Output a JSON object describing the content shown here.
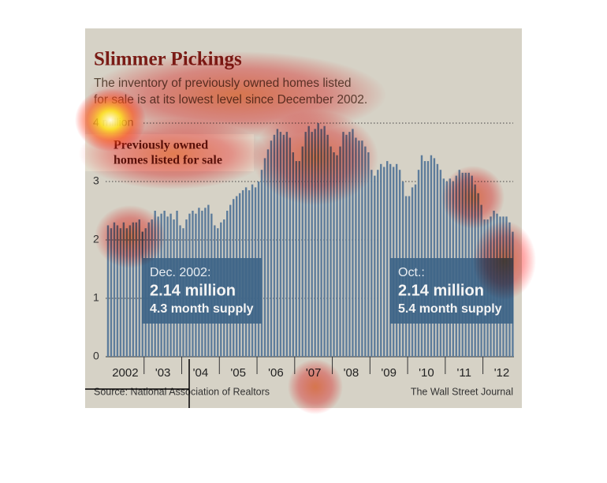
{
  "chart_data": {
    "type": "bar",
    "title": "Slimmer Pickings",
    "subtitle": [
      "The inventory of previously owned homes listed",
      "for sale is at its lowest level since December 2002."
    ],
    "categories": [
      null,
      null,
      null,
      null,
      null,
      "2002",
      null,
      null,
      null,
      null,
      null,
      null,
      null,
      null,
      null,
      null,
      null,
      "'03",
      null,
      null,
      null,
      null,
      null,
      null,
      null,
      null,
      null,
      null,
      null,
      "'04",
      null,
      null,
      null,
      null,
      null,
      null,
      null,
      null,
      null,
      null,
      null,
      "'05",
      null,
      null,
      null,
      null,
      null,
      null,
      null,
      null,
      null,
      null,
      null,
      "'06",
      null,
      null,
      null,
      null,
      null,
      null,
      null,
      null,
      null,
      null,
      null,
      "'07",
      null,
      null,
      null,
      null,
      null,
      null,
      null,
      null,
      null,
      null,
      null,
      "'08",
      null,
      null,
      null,
      null,
      null,
      null,
      null,
      null,
      null,
      null,
      null,
      "'09",
      null,
      null,
      null,
      null,
      null,
      null,
      null,
      null,
      null,
      null,
      null,
      "'10",
      null,
      null,
      null,
      null,
      null,
      null,
      null,
      null,
      null,
      null,
      null,
      "'11",
      null,
      null,
      null,
      null,
      null,
      null,
      null,
      null,
      null,
      null,
      null,
      "'12",
      null,
      null,
      null,
      null
    ],
    "series": [
      {
        "name": "Previously owned homes listed for sale",
        "color": "#5d7c9b",
        "values": [
          2.25,
          2.2,
          2.3,
          2.25,
          2.2,
          2.3,
          2.2,
          2.25,
          2.3,
          2.3,
          2.35,
          2.14,
          2.2,
          2.3,
          2.35,
          2.5,
          2.4,
          2.45,
          2.5,
          2.4,
          2.45,
          2.35,
          2.5,
          2.25,
          2.2,
          2.35,
          2.45,
          2.5,
          2.45,
          2.55,
          2.5,
          2.55,
          2.6,
          2.45,
          2.25,
          2.2,
          2.3,
          2.35,
          2.5,
          2.6,
          2.7,
          2.75,
          2.8,
          2.85,
          2.9,
          2.85,
          2.95,
          2.9,
          3.0,
          3.2,
          3.4,
          3.55,
          3.7,
          3.8,
          3.9,
          3.85,
          3.8,
          3.85,
          3.75,
          3.5,
          3.35,
          3.35,
          3.6,
          3.85,
          3.95,
          3.85,
          3.9,
          4.0,
          3.9,
          3.95,
          3.8,
          3.6,
          3.5,
          3.45,
          3.6,
          3.85,
          3.8,
          3.85,
          3.9,
          3.75,
          3.7,
          3.7,
          3.6,
          3.5,
          3.2,
          3.1,
          3.2,
          3.3,
          3.25,
          3.35,
          3.3,
          3.25,
          3.3,
          3.2,
          3.0,
          2.75,
          2.75,
          2.9,
          2.95,
          3.2,
          3.45,
          3.35,
          3.35,
          3.45,
          3.4,
          3.3,
          3.2,
          3.05,
          3.0,
          3.05,
          3.0,
          3.1,
          3.2,
          3.15,
          3.15,
          3.15,
          3.1,
          2.95,
          2.8,
          2.6,
          2.35,
          2.35,
          2.4,
          2.5,
          2.45,
          2.4,
          2.4,
          2.4,
          2.3,
          2.14
        ]
      }
    ],
    "ylim": [
      0,
      4.2
    ],
    "yticks": [
      0,
      1,
      2,
      3,
      {
        "value": 4,
        "label": "4 million"
      }
    ],
    "grid": true,
    "annotations": [
      {
        "lines": [
          "Dec. 2002:",
          "2.14 million",
          "4.3 month supply"
        ]
      },
      {
        "lines": [
          "Oct.:",
          "2.14 million",
          "5.4 month supply"
        ]
      }
    ],
    "source": "Source: National Association of Realtors",
    "credit": "The Wall Street Journal"
  }
}
